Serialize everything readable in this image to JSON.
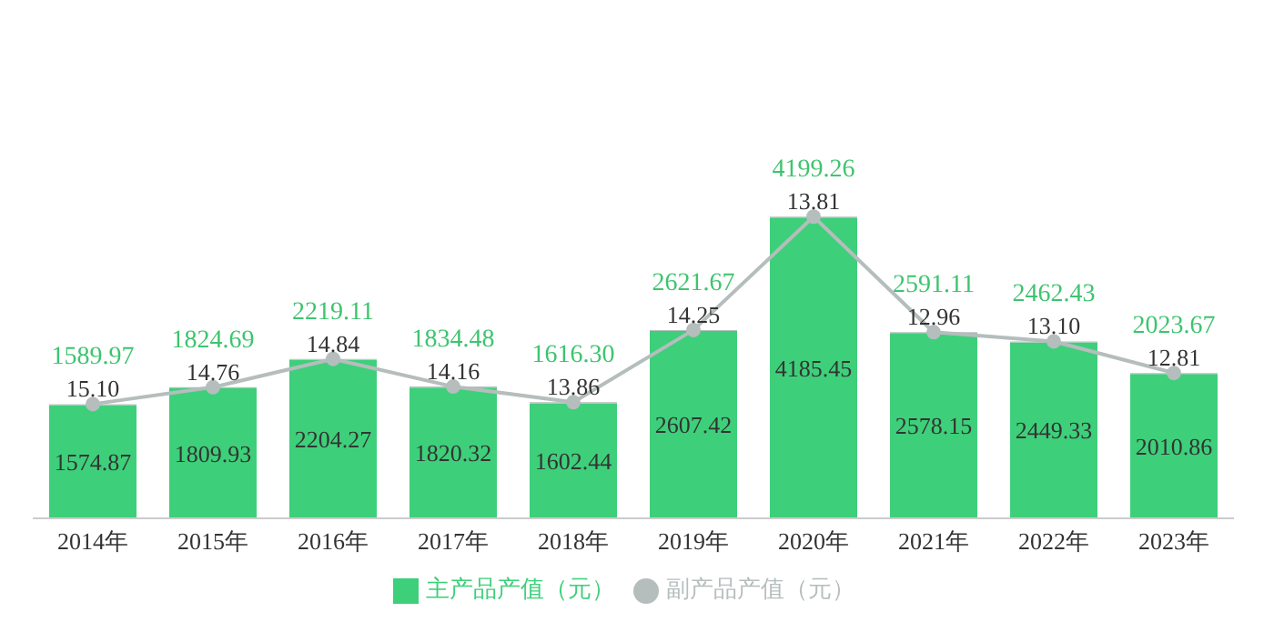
{
  "chart_data": {
    "type": "bar",
    "stacked": true,
    "categories": [
      "2014年",
      "2015年",
      "2016年",
      "2017年",
      "2018年",
      "2019年",
      "2020年",
      "2021年",
      "2022年",
      "2023年"
    ],
    "series": [
      {
        "name": "主产品产值（元）",
        "color": "#3ecf7a",
        "values": [
          1574.87,
          1809.93,
          2204.27,
          1820.32,
          1602.44,
          2607.42,
          4185.45,
          2578.15,
          2449.33,
          2010.86
        ],
        "value_labels": [
          "1574.87",
          "1809.93",
          "2204.27",
          "1820.32",
          "1602.44",
          "2607.42",
          "4185.45",
          "2578.15",
          "2449.33",
          "2010.86"
        ]
      },
      {
        "name": "副产品产值（元）",
        "color": "#b5bdbd",
        "values": [
          15.1,
          14.76,
          14.84,
          14.16,
          13.86,
          14.25,
          13.81,
          12.96,
          13.1,
          12.81
        ],
        "value_labels": [
          "15.10",
          "14.76",
          "14.84",
          "14.16",
          "13.86",
          "14.25",
          "13.81",
          "12.96",
          "13.10",
          "12.81"
        ]
      },
      {
        "type": "line",
        "color": "#b5bdbd",
        "values": [
          1589.97,
          1824.69,
          2219.11,
          1834.48,
          1616.3,
          2621.67,
          4199.26,
          2591.11,
          2462.43,
          2023.67
        ],
        "value_labels": [
          "1589.97",
          "1824.69",
          "2219.11",
          "1834.48",
          "1616.30",
          "2621.67",
          "4199.26",
          "2591.11",
          "2462.43",
          "2023.67"
        ]
      }
    ],
    "tick_labels": "x",
    "legend": "bottom",
    "marker": "circle"
  }
}
